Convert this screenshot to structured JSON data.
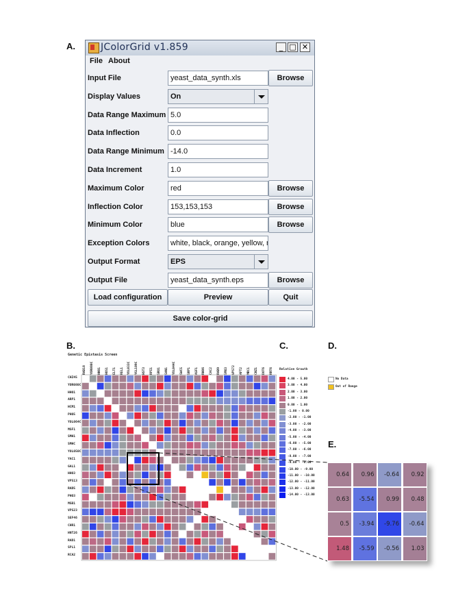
{
  "panel_labels": {
    "a": "A.",
    "b": "B.",
    "c": "C.",
    "d": "D.",
    "e": "E."
  },
  "window": {
    "title": "JColorGrid v1.859",
    "controls": {
      "minimize": "_",
      "maximize": "□",
      "close": "✕"
    },
    "menu": [
      "File",
      "About"
    ]
  },
  "form": {
    "rows": [
      {
        "label": "Input File",
        "value": "yeast_data_synth.xls",
        "kind": "text",
        "button": "Browse"
      },
      {
        "label": "Display Values",
        "value": "On",
        "kind": "combo"
      },
      {
        "label": "Data Range Maximum",
        "value": "5.0",
        "kind": "text"
      },
      {
        "label": "Data Inflection",
        "value": "0.0",
        "kind": "text"
      },
      {
        "label": "Data Range Minimum",
        "value": "-14.0",
        "kind": "text"
      },
      {
        "label": "Data Increment",
        "value": "1.0",
        "kind": "text"
      },
      {
        "label": "Maximum Color",
        "value": "red",
        "kind": "text",
        "button": "Browse"
      },
      {
        "label": "Inflection Color",
        "value": "153,153,153",
        "kind": "text",
        "button": "Browse"
      },
      {
        "label": "Minimum Color",
        "value": "blue",
        "kind": "text",
        "button": "Browse"
      },
      {
        "label": "Exception Colors",
        "value": "white, black, orange, yellow, ma",
        "kind": "text"
      },
      {
        "label": "Output Format",
        "value": "EPS",
        "kind": "combo"
      },
      {
        "label": "Output File",
        "value": "yeast_data_synth.eps",
        "kind": "text",
        "button": "Browse"
      }
    ],
    "buttons": {
      "load": "Load configuration",
      "preview": "Preview",
      "quit": "Quit",
      "save": "Save color-grid"
    }
  },
  "heatmap": {
    "title": "Genetic Epistasis Screen",
    "col_labels": [
      "RAD18",
      "YOR080C",
      "HHO1",
      "HOS1",
      "ELT1",
      "REL1",
      "YOL033C",
      "YGL109C",
      "HST3",
      "RPI1",
      "SRO1",
      "SAN1",
      "YOL044C",
      "SWC5",
      "SRP1",
      "ASF1",
      "RHO6",
      "CAC2",
      "RAD9",
      "SMX3",
      "VPS72",
      "AFT2",
      "MRC1",
      "CHZ1",
      "DOT6",
      "RRT6"
    ],
    "row_labels": [
      "CHZ45",
      "YOR080C",
      "HHO1",
      "ARP1",
      "HCM1",
      "PHO5",
      "YOL064C",
      "MSF1",
      "SMH1",
      "SMHC",
      "YOL050C",
      "YAC1",
      "GAL1",
      "HHO3",
      "VPS13",
      "RAD5",
      "PHO3",
      "MSB1",
      "VPS23",
      "SEF46",
      "CHR1",
      "HNT26",
      "RAD1",
      "SPL1",
      "RCA2"
    ],
    "colors": {
      "no_data": "#ffffff",
      "inflection": "#a09a9a",
      "max": "#e22c3a",
      "min": "#1a25e6",
      "out_of_range": "#f0c020"
    }
  },
  "legend": {
    "title": "Relative Growth",
    "entries": [
      {
        "label": "4.00 - 5.00",
        "color": "#e5263a"
      },
      {
        "label": "3.00 - 4.00",
        "color": "#d94360"
      },
      {
        "label": "2.00 - 3.00",
        "color": "#c9587a"
      },
      {
        "label": "1.00 - 2.00",
        "color": "#bd6a86"
      },
      {
        "label": "0.00 - 1.00",
        "color": "#a7808f"
      },
      {
        "label": "-1.00 - 0.00",
        "color": "#9a9fa2"
      },
      {
        "label": "-2.00 - -1.00",
        "color": "#8d9acd"
      },
      {
        "label": "-3.00 - -2.00",
        "color": "#8190d2"
      },
      {
        "label": "-4.00 - -3.00",
        "color": "#7685d6"
      },
      {
        "label": "-5.00 - -4.00",
        "color": "#6a7bda"
      },
      {
        "label": "-6.00 - -5.00",
        "color": "#5e70de"
      },
      {
        "label": "-7.00 - -6.00",
        "color": "#5265e1"
      },
      {
        "label": "-8.00 - -7.00",
        "color": "#465ae4"
      },
      {
        "label": "-9.00 - -8.00",
        "color": "#3a50e6"
      },
      {
        "label": "-10.00 - -9.00",
        "color": "#3045e8"
      },
      {
        "label": "-11.00 - -10.00",
        "color": "#263bea"
      },
      {
        "label": "-12.00 - -11.00",
        "color": "#1d31ec"
      },
      {
        "label": "-13.00 - -12.00",
        "color": "#1427ee"
      },
      {
        "label": "-14.00 - -13.00",
        "color": "#0b1df0"
      }
    ]
  },
  "exceptions": [
    {
      "label": "No Data",
      "color": "#ffffff"
    },
    {
      "label": "Out of Range",
      "color": "#f0c020"
    }
  ],
  "zoom": {
    "values": [
      [
        "0.64",
        "0.96",
        "-0.64",
        "0.92"
      ],
      [
        "0.63",
        "-5.54",
        "0.99",
        "0.48"
      ],
      [
        "0.5",
        "-3.94",
        "-9.76",
        "-0.64"
      ],
      [
        "1.48",
        "-5.59",
        "-0.56",
        "1.03"
      ]
    ],
    "colors": [
      [
        "#a78095",
        "#a47f95",
        "#8f9ac8",
        "#a57f95"
      ],
      [
        "#a78095",
        "#5f73e0",
        "#a47f95",
        "#a88297"
      ],
      [
        "#a88297",
        "#6b7ddb",
        "#3047e8",
        "#8f9ac8"
      ],
      [
        "#c25a78",
        "#5f72e0",
        "#8f9ac8",
        "#a47f95"
      ]
    ]
  }
}
